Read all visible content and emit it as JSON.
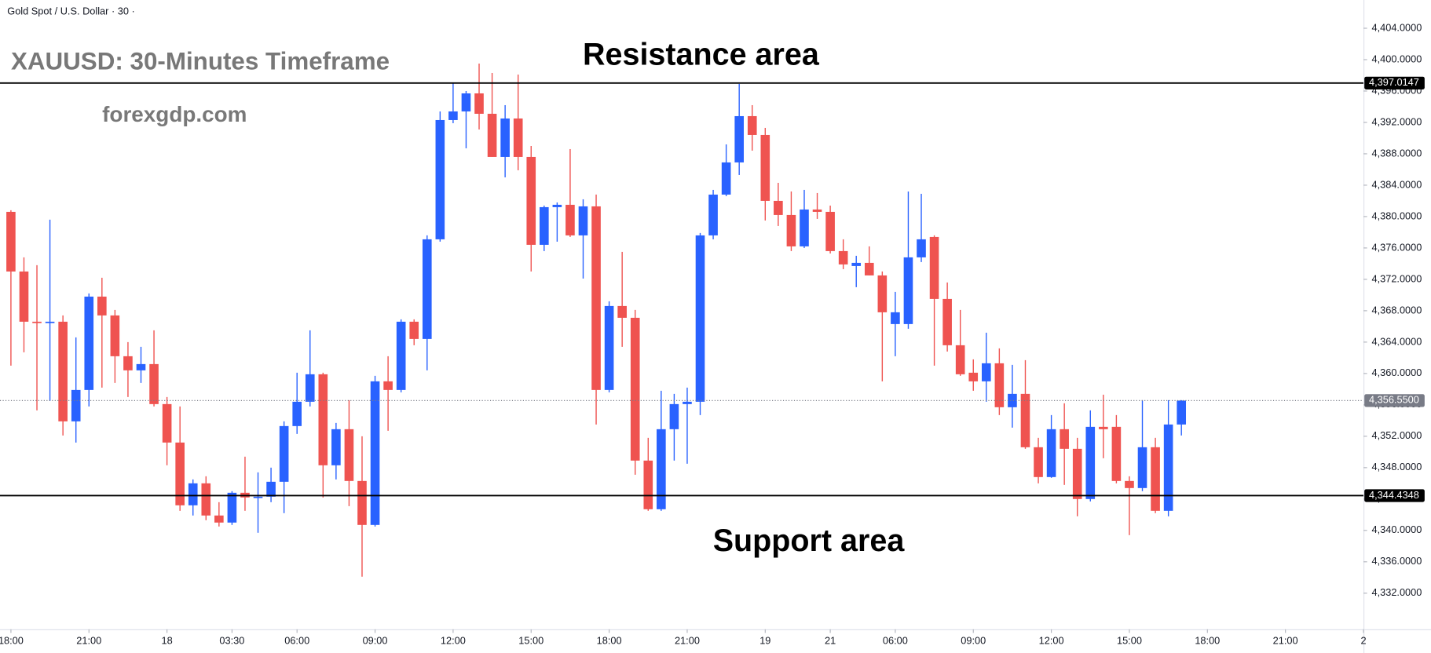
{
  "chart_data": {
    "type": "candlestick",
    "symbol": "Gold Spot / U.S. Dollar · 30 ·",
    "title": "XAUUSD: 30-Minutes Timeframe",
    "subtitle": "forexgdp.com",
    "annotations": [
      "Resistance area",
      "Support area"
    ],
    "up_color": "#2962ff",
    "down_color": "#ef5350",
    "series": {
      "open": [
        4380.6,
        4373,
        4366.6,
        4366.5,
        4366.6,
        4353.9,
        4357.9,
        4369.8,
        4367.4,
        4362.2,
        4360.4,
        4361.2,
        4356.1,
        4351.2,
        4343.2,
        4346,
        4341.9,
        4341,
        4344.8,
        4344.2,
        4344.3,
        4346.2,
        4353.3,
        4356.4,
        4359.9,
        4348.3,
        4352.9,
        4346.3,
        4340.7,
        4359,
        4357.9,
        4366.6,
        4364.4,
        4377.1,
        4392.3,
        4393.4,
        4395.7,
        4393.1,
        4387.6,
        4392.5,
        4387.6,
        4376.4,
        4381.2,
        4381.5,
        4377.6,
        4381.3,
        4357.9,
        4368.6,
        4367.1,
        4348.9,
        4342.7,
        4352.9,
        4356.1,
        4356.4,
        4377.6,
        4382.8,
        4386.9,
        4392.8,
        4390.4,
        4382,
        4380.2,
        4376.2,
        4380.9,
        4380.6,
        4375.6,
        4373.7,
        4374.1,
        4372.5,
        4366.3,
        4366.3,
        4374.8,
        4377.4,
        4369.5,
        4363.6,
        4360.1,
        4359,
        4361.3,
        4355.7,
        4357.4,
        4350.6,
        4346.8,
        4352.9,
        4350.4,
        4344,
        4353.2,
        4353.2,
        4346.3,
        4345.4,
        4350.6,
        4342.5,
        4353.5
      ],
      "high": [
        4380.8,
        4374.8,
        4373.8,
        4379.6,
        4367.4,
        4364.6,
        4370.2,
        4372.2,
        4368.1,
        4364,
        4363.4,
        4365.5,
        4357,
        4355.8,
        4346.5,
        4346.9,
        4343.6,
        4345,
        4349.4,
        4347.4,
        4348,
        4353.9,
        4360.1,
        4365.5,
        4360.1,
        4353.7,
        4356.6,
        4352,
        4359.7,
        4362.2,
        4366.9,
        4366.9,
        4377.6,
        4393.4,
        4397.1,
        4396,
        4399.5,
        4398.3,
        4394.2,
        4398.1,
        4389,
        4381.4,
        4381.8,
        4388.6,
        4382.2,
        4382.8,
        4369.2,
        4375.5,
        4368.1,
        4351.8,
        4357.8,
        4357.4,
        4358.2,
        4377.9,
        4383.4,
        4389.2,
        4396.9,
        4394.2,
        4391.3,
        4384.3,
        4383.2,
        4383.4,
        4383,
        4381.4,
        4377.1,
        4375,
        4376.2,
        4373,
        4370.4,
        4383.2,
        4382.9,
        4377.6,
        4371.6,
        4368.1,
        4361.8,
        4365.2,
        4363.2,
        4361.1,
        4361.7,
        4351.8,
        4354.7,
        4356.2,
        4351.8,
        4355.3,
        4357.3,
        4354.7,
        4346.9,
        4356.6,
        4351.8,
        4356.6,
        4356.6
      ],
      "low": [
        4361,
        4362.7,
        4355.3,
        4356.5,
        4352.1,
        4351.2,
        4355.8,
        4358.2,
        4358.8,
        4357,
        4358.8,
        4355.8,
        4348.3,
        4342.5,
        4341.9,
        4341.3,
        4340.5,
        4340.7,
        4342.5,
        4339.7,
        4343.6,
        4342.2,
        4352.3,
        4355.8,
        4344.2,
        4346.5,
        4343.1,
        4334.1,
        4340.5,
        4352.7,
        4357.6,
        4363.6,
        4360.4,
        4376.8,
        4391.9,
        4388.7,
        4391.1,
        4387.6,
        4385,
        4385.9,
        4373,
        4375.6,
        4376.8,
        4377.4,
        4372.1,
        4353.5,
        4357.6,
        4363.4,
        4347.1,
        4342.5,
        4342.5,
        4348.9,
        4348.5,
        4354.7,
        4377.1,
        4382.6,
        4385.3,
        4388.4,
        4379.5,
        4378.8,
        4375.6,
        4376,
        4379.7,
        4375.3,
        4373.3,
        4371,
        4372.5,
        4359,
        4362.2,
        4365.7,
        4374.2,
        4361,
        4362.8,
        4359.7,
        4357.8,
        4356.4,
        4354.7,
        4353.1,
        4350.4,
        4346,
        4346.7,
        4345.8,
        4341.8,
        4343.7,
        4349.2,
        4346,
        4339.4,
        4345,
        4342.2,
        4341.8,
        4352.1
      ],
      "close": [
        4373,
        4366.6,
        4366.5,
        4366.6,
        4353.9,
        4357.9,
        4369.8,
        4367.4,
        4362.2,
        4360.4,
        4361.2,
        4356.1,
        4351.2,
        4343.2,
        4346,
        4341.9,
        4341,
        4344.8,
        4344.2,
        4344.3,
        4346.2,
        4353.3,
        4356.4,
        4359.9,
        4348.3,
        4352.9,
        4346.3,
        4340.7,
        4359,
        4357.9,
        4366.6,
        4364.4,
        4377.1,
        4392.3,
        4393.4,
        4395.7,
        4393.1,
        4387.6,
        4392.5,
        4387.6,
        4376.4,
        4381.2,
        4381.5,
        4377.6,
        4381.3,
        4357.9,
        4368.6,
        4367.1,
        4348.9,
        4342.7,
        4352.9,
        4356.1,
        4356.4,
        4377.6,
        4382.8,
        4386.9,
        4392.8,
        4390.4,
        4382,
        4380.2,
        4376.2,
        4380.9,
        4380.6,
        4375.6,
        4373.9,
        4374.1,
        4372.5,
        4367.8,
        4367.8,
        4374.8,
        4377.1,
        4369.5,
        4363.6,
        4359.9,
        4359,
        4361.3,
        4355.7,
        4357.4,
        4350.6,
        4346.8,
        4352.9,
        4350.4,
        4344,
        4353.2,
        4352.9,
        4346.3,
        4345.4,
        4350.6,
        4342.5,
        4353.5,
        4356.55
      ]
    },
    "hlines": [
      {
        "value": 4397.0147,
        "label": "4,397.0147",
        "style": "solid",
        "color": "#000000"
      },
      {
        "value": 4344.4348,
        "label": "4,344.4348",
        "style": "solid",
        "color": "#000000"
      },
      {
        "value": 4356.55,
        "label": "4,356.5500",
        "style": "dotted",
        "color": "#787b86"
      }
    ],
    "xlim": [
      -0.84,
      104
    ],
    "ylim": [
      4327.4,
      4407.6
    ],
    "yticks": [
      {
        "value": 4332,
        "label": "4,332.0000"
      },
      {
        "value": 4336,
        "label": "4,336.0000"
      },
      {
        "value": 4340,
        "label": "4,340.0000"
      },
      {
        "value": 4344,
        "label": "4,344.0000"
      },
      {
        "value": 4348,
        "label": "4,348.0000"
      },
      {
        "value": 4352,
        "label": "4,352.0000"
      },
      {
        "value": 4356,
        "label": "4,356.0000"
      },
      {
        "value": 4360,
        "label": "4,360.0000"
      },
      {
        "value": 4364,
        "label": "4,364.0000"
      },
      {
        "value": 4368,
        "label": "4,368.0000"
      },
      {
        "value": 4372,
        "label": "4,372.0000"
      },
      {
        "value": 4376,
        "label": "4,376.0000"
      },
      {
        "value": 4380,
        "label": "4,380.0000"
      },
      {
        "value": 4384,
        "label": "4,384.0000"
      },
      {
        "value": 4388,
        "label": "4,388.0000"
      },
      {
        "value": 4392,
        "label": "4,392.0000"
      },
      {
        "value": 4396,
        "label": "4,396.0000"
      },
      {
        "value": 4400,
        "label": "4,400.0000"
      },
      {
        "value": 4404,
        "label": "4,404.0000"
      }
    ],
    "xticks": [
      {
        "value": 0,
        "label": "18:00"
      },
      {
        "value": 6,
        "label": "21:00"
      },
      {
        "value": 12,
        "label": "18"
      },
      {
        "value": 17,
        "label": "03:30"
      },
      {
        "value": 22,
        "label": "06:00"
      },
      {
        "value": 28,
        "label": "09:00"
      },
      {
        "value": 34,
        "label": "12:00"
      },
      {
        "value": 40,
        "label": "15:00"
      },
      {
        "value": 46,
        "label": "18:00"
      },
      {
        "value": 52,
        "label": "21:00"
      },
      {
        "value": 58,
        "label": "19"
      },
      {
        "value": 63,
        "label": "21"
      },
      {
        "value": 68,
        "label": "06:00"
      },
      {
        "value": 74,
        "label": "09:00"
      },
      {
        "value": 80,
        "label": "12:00"
      },
      {
        "value": 86,
        "label": "15:00"
      },
      {
        "value": 92,
        "label": "18:00"
      },
      {
        "value": 98,
        "label": "21:00"
      },
      {
        "value": 104,
        "label": "2"
      }
    ]
  }
}
